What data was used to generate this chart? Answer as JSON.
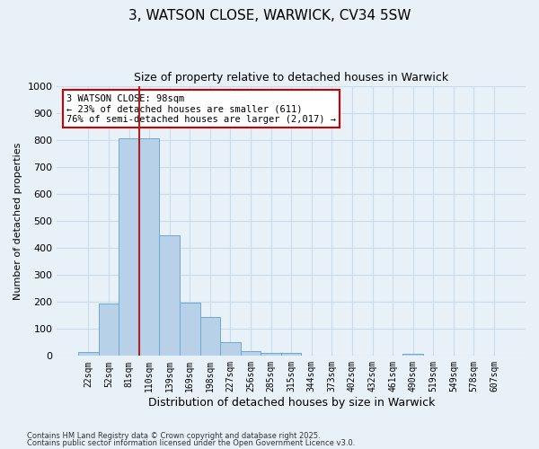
{
  "title1": "3, WATSON CLOSE, WARWICK, CV34 5SW",
  "title2": "Size of property relative to detached houses in Warwick",
  "xlabel": "Distribution of detached houses by size in Warwick",
  "ylabel": "Number of detached properties",
  "bin_labels": [
    "22sqm",
    "52sqm",
    "81sqm",
    "110sqm",
    "139sqm",
    "169sqm",
    "198sqm",
    "227sqm",
    "256sqm",
    "285sqm",
    "315sqm",
    "344sqm",
    "373sqm",
    "402sqm",
    "432sqm",
    "461sqm",
    "490sqm",
    "519sqm",
    "549sqm",
    "578sqm",
    "607sqm"
  ],
  "bar_values": [
    15,
    193,
    805,
    805,
    448,
    197,
    143,
    50,
    18,
    10,
    10,
    0,
    0,
    0,
    0,
    0,
    8,
    0,
    0,
    0,
    0
  ],
  "bar_color": "#b8d0e8",
  "bar_edge_color": "#6aaad4",
  "grid_color": "#c8dcea",
  "background_color": "#e8f0f8",
  "vline_color": "#aa2222",
  "annotation_text": "3 WATSON CLOSE: 98sqm\n← 23% of detached houses are smaller (611)\n76% of semi-detached houses are larger (2,017) →",
  "annotation_box_color": "#ffffff",
  "annotation_box_edge": "#cc0000",
  "ylim": [
    0,
    1000
  ],
  "yticks": [
    0,
    100,
    200,
    300,
    400,
    500,
    600,
    700,
    800,
    900,
    1000
  ],
  "footer1": "Contains HM Land Registry data © Crown copyright and database right 2025.",
  "footer2": "Contains public sector information licensed under the Open Government Licence v3.0."
}
